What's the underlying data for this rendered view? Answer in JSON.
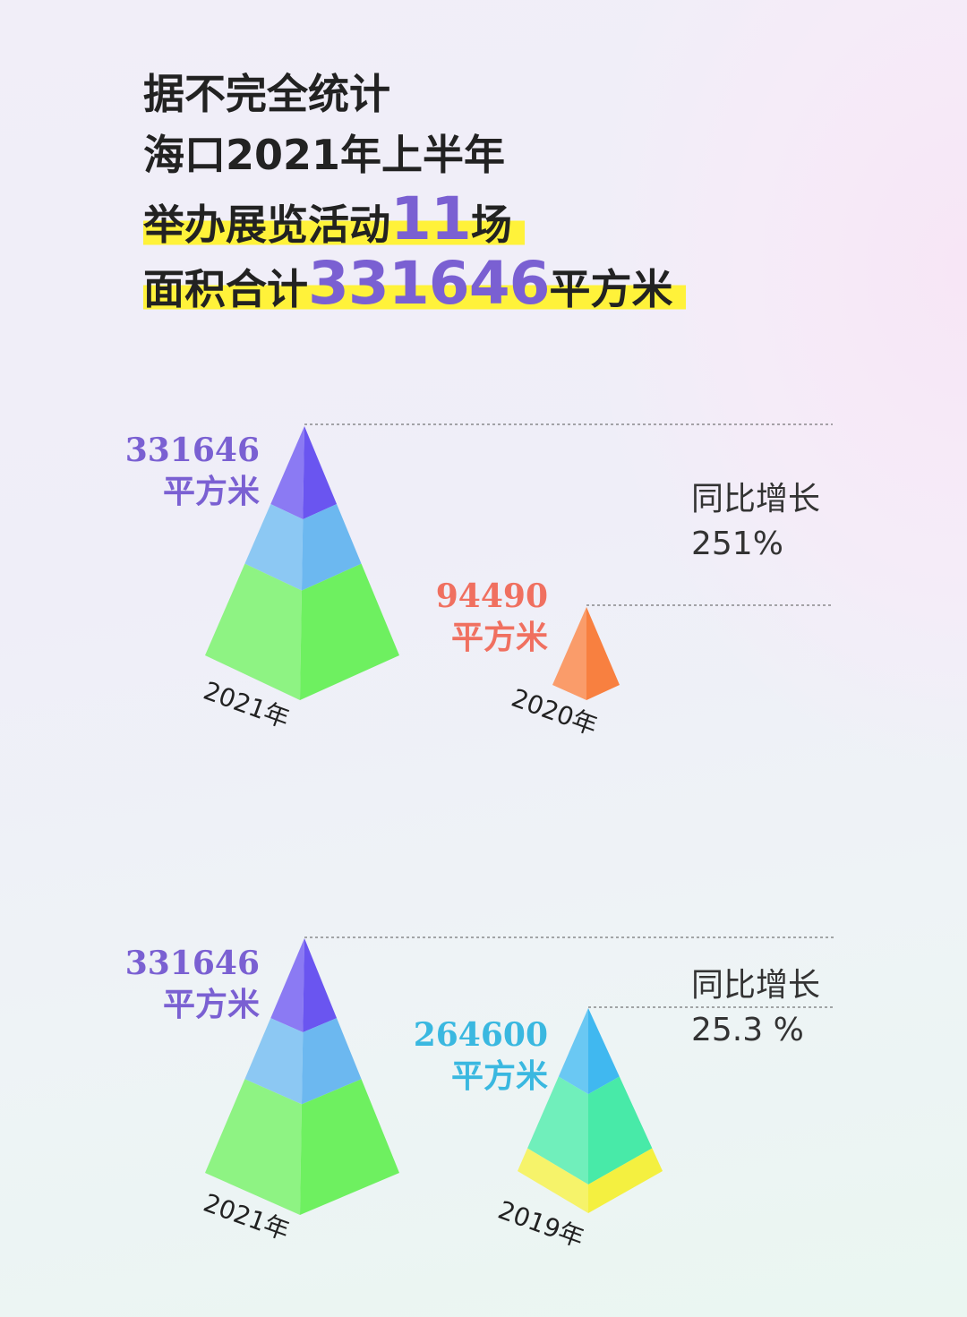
{
  "header": {
    "line1": "据不完全统计",
    "line2": "海口2021年上半年",
    "line3_prefix": "举办展览活动",
    "line3_number": "11",
    "line3_suffix": "场",
    "line4_prefix": "面积合计",
    "line4_number": "331646",
    "line4_suffix": "平方米"
  },
  "comparisons": [
    {
      "current": {
        "year": "2021年",
        "value": "331646",
        "unit": "平方米",
        "color": "#7a60d2"
      },
      "previous": {
        "year": "2020年",
        "value": "94490",
        "unit": "平方米",
        "color": "#f07060"
      },
      "growth_label": "同比增长",
      "growth_value": "251%"
    },
    {
      "current": {
        "year": "2021年",
        "value": "331646",
        "unit": "平方米",
        "color": "#7a60d2"
      },
      "previous": {
        "year": "2019年",
        "value": "264600",
        "unit": "平方米",
        "color": "#3ab8e0"
      },
      "growth_label": "同比增长",
      "growth_value": "25.3 %"
    }
  ],
  "chart_data": [
    {
      "type": "bar",
      "style": "pyramid",
      "categories": [
        "2021年",
        "2020年"
      ],
      "values": [
        331646,
        94490
      ],
      "unit": "平方米",
      "annotation": "同比增长 251%",
      "colors": {
        "2021年": [
          "#6a55f0",
          "#6cb8f0",
          "#6ef060"
        ],
        "2020年": [
          "#f88040"
        ]
      }
    },
    {
      "type": "bar",
      "style": "pyramid",
      "categories": [
        "2021年",
        "2019年"
      ],
      "values": [
        331646,
        264600
      ],
      "unit": "平方米",
      "annotation": "同比增长 25.3 %",
      "colors": {
        "2021年": [
          "#6a55f0",
          "#6cb8f0",
          "#6ef060"
        ],
        "2019年": [
          "#40b8f0",
          "#48eaa8",
          "#f4f040"
        ]
      }
    }
  ]
}
